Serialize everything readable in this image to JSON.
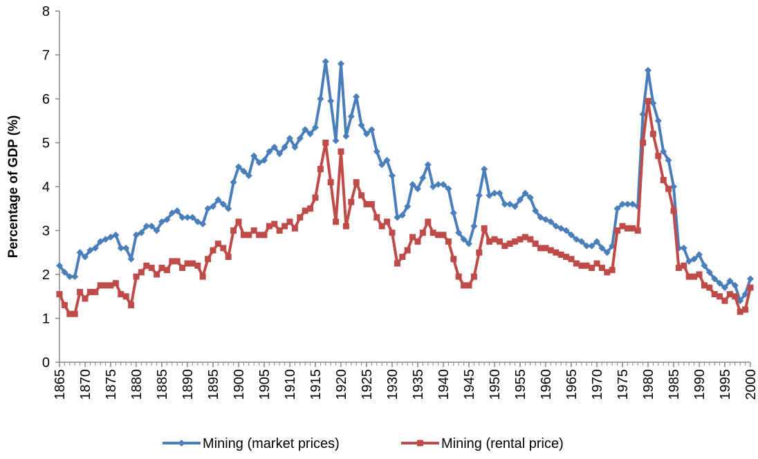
{
  "chart_data": {
    "type": "line",
    "y_label": "Percentage of GDP (%)",
    "x": [
      1865,
      1866,
      1867,
      1868,
      1869,
      1870,
      1871,
      1872,
      1873,
      1874,
      1875,
      1876,
      1877,
      1878,
      1879,
      1880,
      1881,
      1882,
      1883,
      1884,
      1885,
      1886,
      1887,
      1888,
      1889,
      1890,
      1891,
      1892,
      1893,
      1894,
      1895,
      1896,
      1897,
      1898,
      1899,
      1900,
      1901,
      1902,
      1903,
      1904,
      1905,
      1906,
      1907,
      1908,
      1909,
      1910,
      1911,
      1912,
      1913,
      1914,
      1915,
      1916,
      1917,
      1918,
      1919,
      1920,
      1921,
      1922,
      1923,
      1924,
      1925,
      1926,
      1927,
      1928,
      1929,
      1930,
      1931,
      1932,
      1933,
      1934,
      1935,
      1936,
      1937,
      1938,
      1939,
      1940,
      1941,
      1942,
      1943,
      1944,
      1945,
      1946,
      1947,
      1948,
      1949,
      1950,
      1951,
      1952,
      1953,
      1954,
      1955,
      1956,
      1957,
      1958,
      1959,
      1960,
      1961,
      1962,
      1963,
      1964,
      1965,
      1966,
      1967,
      1968,
      1969,
      1970,
      1971,
      1972,
      1973,
      1974,
      1975,
      1976,
      1977,
      1978,
      1979,
      1980,
      1981,
      1982,
      1983,
      1984,
      1985,
      1986,
      1987,
      1988,
      1989,
      1990,
      1991,
      1992,
      1993,
      1994,
      1995,
      1996,
      1997,
      1998,
      1999,
      2000
    ],
    "series": [
      {
        "name": "Mining (market prices)",
        "color": "#4a7ebb",
        "marker": "diamond",
        "values": [
          2.2,
          2.05,
          1.95,
          1.95,
          2.5,
          2.4,
          2.55,
          2.6,
          2.75,
          2.8,
          2.85,
          2.9,
          2.6,
          2.6,
          2.35,
          2.9,
          2.95,
          3.1,
          3.1,
          3.0,
          3.2,
          3.25,
          3.4,
          3.45,
          3.3,
          3.3,
          3.3,
          3.2,
          3.15,
          3.5,
          3.55,
          3.7,
          3.6,
          3.5,
          4.1,
          4.45,
          4.35,
          4.25,
          4.7,
          4.55,
          4.6,
          4.8,
          4.9,
          4.75,
          4.9,
          5.1,
          4.9,
          5.1,
          5.3,
          5.2,
          5.35,
          6.0,
          6.85,
          5.95,
          5.05,
          6.8,
          5.15,
          5.6,
          6.05,
          5.4,
          5.2,
          5.3,
          4.8,
          4.5,
          4.6,
          4.25,
          3.3,
          3.35,
          3.55,
          4.05,
          3.95,
          4.2,
          4.5,
          4.0,
          4.05,
          4.05,
          3.95,
          3.4,
          2.95,
          2.8,
          2.7,
          3.1,
          3.8,
          4.4,
          3.8,
          3.85,
          3.85,
          3.6,
          3.6,
          3.55,
          3.7,
          3.85,
          3.75,
          3.45,
          3.3,
          3.25,
          3.2,
          3.1,
          3.05,
          3.0,
          2.9,
          2.8,
          2.75,
          2.65,
          2.65,
          2.75,
          2.6,
          2.5,
          2.65,
          3.5,
          3.6,
          3.6,
          3.6,
          3.55,
          5.65,
          6.65,
          5.9,
          5.5,
          4.8,
          4.6,
          4.0,
          2.6,
          2.6,
          2.3,
          2.35,
          2.45,
          2.2,
          2.05,
          1.9,
          1.8,
          1.7,
          1.85,
          1.75,
          1.4,
          1.55,
          1.9
        ]
      },
      {
        "name": "Mining (rental price)",
        "color": "#be4b48",
        "marker": "square",
        "values": [
          1.55,
          1.3,
          1.1,
          1.1,
          1.6,
          1.45,
          1.6,
          1.6,
          1.75,
          1.75,
          1.75,
          1.8,
          1.55,
          1.5,
          1.3,
          1.95,
          2.05,
          2.2,
          2.15,
          2.0,
          2.15,
          2.1,
          2.3,
          2.3,
          2.15,
          2.25,
          2.25,
          2.2,
          1.95,
          2.35,
          2.55,
          2.7,
          2.6,
          2.4,
          3.0,
          3.2,
          2.9,
          2.9,
          3.0,
          2.9,
          2.9,
          3.1,
          3.15,
          3.0,
          3.1,
          3.2,
          3.05,
          3.3,
          3.45,
          3.5,
          3.75,
          4.4,
          5.0,
          4.1,
          3.2,
          4.8,
          3.1,
          3.65,
          4.1,
          3.8,
          3.6,
          3.6,
          3.3,
          3.1,
          3.2,
          2.95,
          2.25,
          2.4,
          2.55,
          2.85,
          2.75,
          2.95,
          3.2,
          2.95,
          2.9,
          2.9,
          2.75,
          2.35,
          1.95,
          1.75,
          1.75,
          1.95,
          2.5,
          3.05,
          2.75,
          2.8,
          2.75,
          2.65,
          2.7,
          2.75,
          2.8,
          2.85,
          2.8,
          2.7,
          2.6,
          2.6,
          2.55,
          2.5,
          2.45,
          2.4,
          2.35,
          2.25,
          2.2,
          2.2,
          2.15,
          2.25,
          2.15,
          2.05,
          2.1,
          3.0,
          3.1,
          3.05,
          3.05,
          3.0,
          5.0,
          5.95,
          5.2,
          4.7,
          4.15,
          3.95,
          3.45,
          2.15,
          2.2,
          1.95,
          1.95,
          2.0,
          1.75,
          1.7,
          1.55,
          1.5,
          1.4,
          1.55,
          1.5,
          1.15,
          1.2,
          1.7
        ]
      }
    ],
    "xlim": [
      1865,
      2000
    ],
    "xticks": [
      1865,
      1870,
      1875,
      1880,
      1885,
      1890,
      1895,
      1900,
      1905,
      1910,
      1915,
      1920,
      1925,
      1930,
      1935,
      1940,
      1945,
      1950,
      1955,
      1960,
      1965,
      1970,
      1975,
      1980,
      1985,
      1990,
      1995,
      2000
    ],
    "ylim": [
      0,
      8
    ],
    "yticks": [
      0,
      1,
      2,
      3,
      4,
      5,
      6,
      7,
      8
    ],
    "grid": false,
    "legend": "bottom"
  }
}
